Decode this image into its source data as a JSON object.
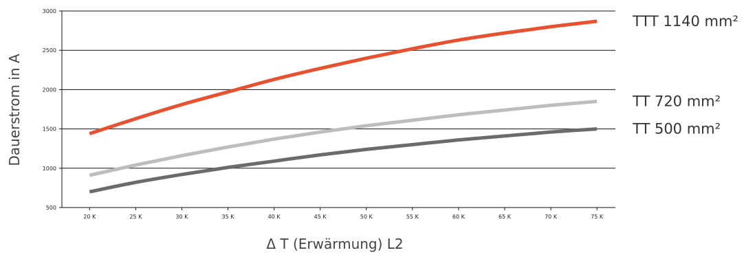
{
  "chart_data": {
    "type": "line",
    "title": "",
    "xlabel": "Δ T (Erwärmung) L2",
    "ylabel": "Dauerstrom in A",
    "x": [
      20,
      25,
      30,
      35,
      40,
      45,
      50,
      55,
      60,
      65,
      70,
      75
    ],
    "x_tick_labels": [
      "20 K",
      "25 K",
      "30 K",
      "35 K",
      "40 K",
      "45 K",
      "50 K",
      "55 K",
      "60 K",
      "65 K",
      "70 K",
      "75 K"
    ],
    "y_ticks": [
      500,
      1000,
      1500,
      2000,
      2500,
      3000
    ],
    "y_tick_labels": [
      "500",
      "1000",
      "1500",
      "2000",
      "2500",
      "3000"
    ],
    "xlim": [
      17,
      77
    ],
    "ylim": [
      500,
      3000
    ],
    "grid": "horizontal",
    "legend_placement": "right",
    "series": [
      {
        "name": "TTT 1140 mm²",
        "color": "#e8512f",
        "values": [
          1440,
          1630,
          1810,
          1970,
          2130,
          2270,
          2400,
          2520,
          2630,
          2720,
          2800,
          2870
        ]
      },
      {
        "name": "TT 720 mm²",
        "color": "#bdbdbd",
        "values": [
          910,
          1040,
          1160,
          1270,
          1370,
          1460,
          1540,
          1610,
          1680,
          1740,
          1800,
          1850
        ]
      },
      {
        "name": "TT 500 mm²",
        "color": "#6b6b6b",
        "values": [
          700,
          820,
          920,
          1010,
          1090,
          1170,
          1240,
          1300,
          1360,
          1410,
          1460,
          1500
        ]
      }
    ]
  }
}
